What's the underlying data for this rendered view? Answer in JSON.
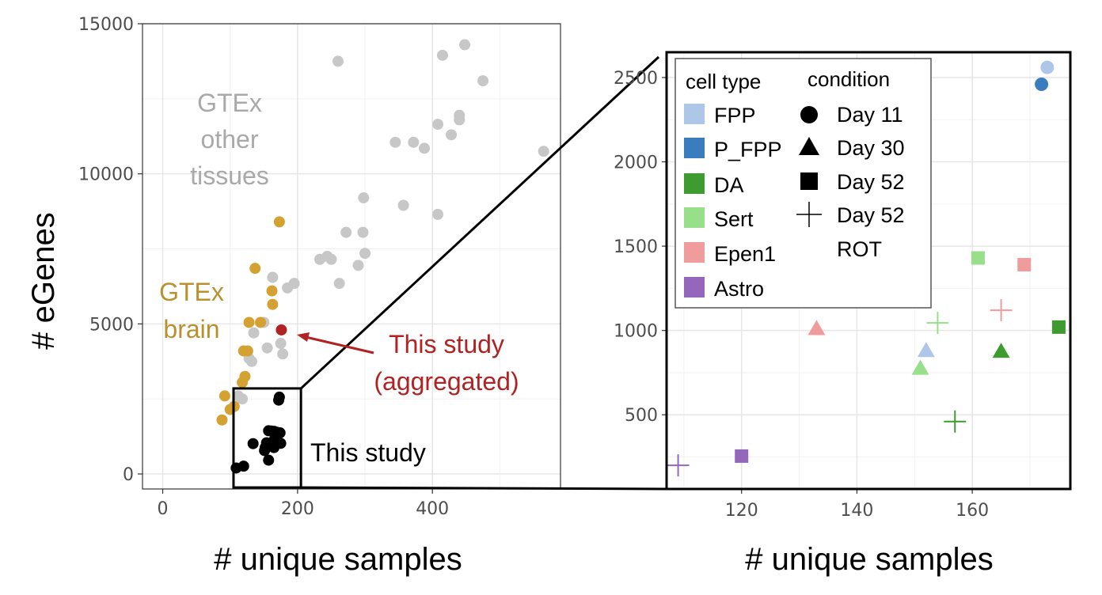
{
  "colors": {
    "gtex_other": "#c7c7c7",
    "gtex_brain": "#d4a233",
    "this_study_aggregated": "#b22222",
    "this_study": "#000000",
    "FPP": "#aec7e8",
    "P_FPP": "#3a7dbf",
    "DA": "#3e9b30",
    "Sert": "#98df8a",
    "Epen1": "#f09c9c",
    "Astro": "#9467bd"
  },
  "chart_data": [
    {
      "type": "scatter",
      "xlabel": "# unique samples",
      "ylabel": "# eGenes",
      "xlim": [
        -30,
        590
      ],
      "ylim": [
        -500,
        15000
      ],
      "xticks": [
        "0",
        "200",
        "400"
      ],
      "yticks": [
        "0",
        "5000",
        "10000",
        "15000"
      ],
      "grid": true,
      "annotations": {
        "gtex_other": [
          "GTEx",
          "other",
          "tissues"
        ],
        "gtex_brain": [
          "GTEx",
          "brain"
        ],
        "aggregated": [
          "This study",
          "(aggregated)"
        ],
        "this_study": "This study"
      },
      "series": [
        {
          "key": "gtex_other",
          "points": [
            [
              260,
              13750
            ],
            [
              415,
              13950
            ],
            [
              448,
              14300
            ],
            [
              475,
              13100
            ],
            [
              408,
              11650
            ],
            [
              440,
              11950
            ],
            [
              440,
              11800
            ],
            [
              428,
              11300
            ],
            [
              345,
              11050
            ],
            [
              372,
              11050
            ],
            [
              388,
              10850
            ],
            [
              565,
              10750
            ],
            [
              298,
              9200
            ],
            [
              357,
              8950
            ],
            [
              408,
              8650
            ],
            [
              272,
              8050
            ],
            [
              297,
              8050
            ],
            [
              300,
              7350
            ],
            [
              233,
              7150
            ],
            [
              244,
              7250
            ],
            [
              250,
              7150
            ],
            [
              290,
              6950
            ],
            [
              262,
              6350
            ],
            [
              163,
              6550
            ],
            [
              195,
              6350
            ],
            [
              185,
              6200
            ],
            [
              150,
              5050
            ],
            [
              135,
              4700
            ],
            [
              175,
              4350
            ],
            [
              178,
              4000
            ],
            [
              155,
              4200
            ],
            [
              128,
              3850
            ],
            [
              132,
              3750
            ],
            [
              112,
              2600
            ],
            [
              118,
              2500
            ]
          ]
        },
        {
          "key": "gtex_brain",
          "points": [
            [
              173,
              8400
            ],
            [
              137,
              6850
            ],
            [
              162,
              6100
            ],
            [
              163,
              5650
            ],
            [
              128,
              5050
            ],
            [
              145,
              5050
            ],
            [
              120,
              4100
            ],
            [
              126,
              4100
            ],
            [
              122,
              3250
            ],
            [
              118,
              3050
            ],
            [
              92,
              2600
            ],
            [
              106,
              2250
            ],
            [
              100,
              2150
            ],
            [
              88,
              1800
            ]
          ]
        },
        {
          "key": "this_study_aggregated",
          "points": [
            [
              176,
              4800
            ]
          ]
        },
        {
          "key": "this_study",
          "points": [
            [
              173,
              2560
            ],
            [
              172,
              2460
            ],
            [
              165,
              1420
            ],
            [
              174,
              1370
            ],
            [
              157,
              1440
            ],
            [
              134,
              1010
            ],
            [
              152,
              880
            ],
            [
              151,
              780
            ],
            [
              165,
              880
            ],
            [
              175,
              1020
            ],
            [
              161,
              1430
            ],
            [
              169,
              1390
            ],
            [
              154,
              1040
            ],
            [
              165,
              1120
            ],
            [
              157,
              460
            ],
            [
              120,
              260
            ],
            [
              109,
              200
            ]
          ]
        }
      ],
      "zoom_box": {
        "x": [
          105,
          205
        ],
        "y": [
          -450,
          2850
        ]
      }
    },
    {
      "type": "scatter",
      "xlabel": "# unique samples",
      "ylabel": "",
      "xlim": [
        107,
        177
      ],
      "ylim": [
        60,
        2650
      ],
      "xticks": [
        "120",
        "140",
        "160"
      ],
      "yticks": [
        "500",
        "1000",
        "1500",
        "2000",
        "2500"
      ],
      "grid": true,
      "legend": {
        "position": "top-left",
        "cell_type_title": "cell type",
        "condition_title": "condition",
        "cell_types": [
          "FPP",
          "P_FPP",
          "DA",
          "Sert",
          "Epen1",
          "Astro"
        ],
        "conditions": [
          {
            "shape": "circle",
            "label": "Day 11"
          },
          {
            "shape": "triangle",
            "label": "Day 30"
          },
          {
            "shape": "square",
            "label": "Day 52"
          },
          {
            "shape": "plus",
            "label": "Day 52",
            "label2": "ROT"
          }
        ]
      },
      "points": [
        {
          "x": 173,
          "y": 2560,
          "cell_type": "FPP",
          "shape": "circle"
        },
        {
          "x": 172,
          "y": 2460,
          "cell_type": "P_FPP",
          "shape": "circle"
        },
        {
          "x": 161,
          "y": 1430,
          "cell_type": "Sert",
          "shape": "square"
        },
        {
          "x": 169,
          "y": 1390,
          "cell_type": "Epen1",
          "shape": "square"
        },
        {
          "x": 175,
          "y": 1020,
          "cell_type": "DA",
          "shape": "square"
        },
        {
          "x": 120,
          "y": 255,
          "cell_type": "Astro",
          "shape": "square"
        },
        {
          "x": 133,
          "y": 1010,
          "cell_type": "Epen1",
          "shape": "triangle"
        },
        {
          "x": 152,
          "y": 880,
          "cell_type": "FPP",
          "shape": "triangle"
        },
        {
          "x": 151,
          "y": 775,
          "cell_type": "Sert",
          "shape": "triangle"
        },
        {
          "x": 165,
          "y": 875,
          "cell_type": "DA",
          "shape": "triangle"
        },
        {
          "x": 154,
          "y": 1045,
          "cell_type": "Sert",
          "shape": "plus"
        },
        {
          "x": 165,
          "y": 1120,
          "cell_type": "Epen1",
          "shape": "plus"
        },
        {
          "x": 157,
          "y": 460,
          "cell_type": "DA",
          "shape": "plus"
        },
        {
          "x": 109,
          "y": 200,
          "cell_type": "Astro",
          "shape": "plus"
        }
      ]
    }
  ]
}
